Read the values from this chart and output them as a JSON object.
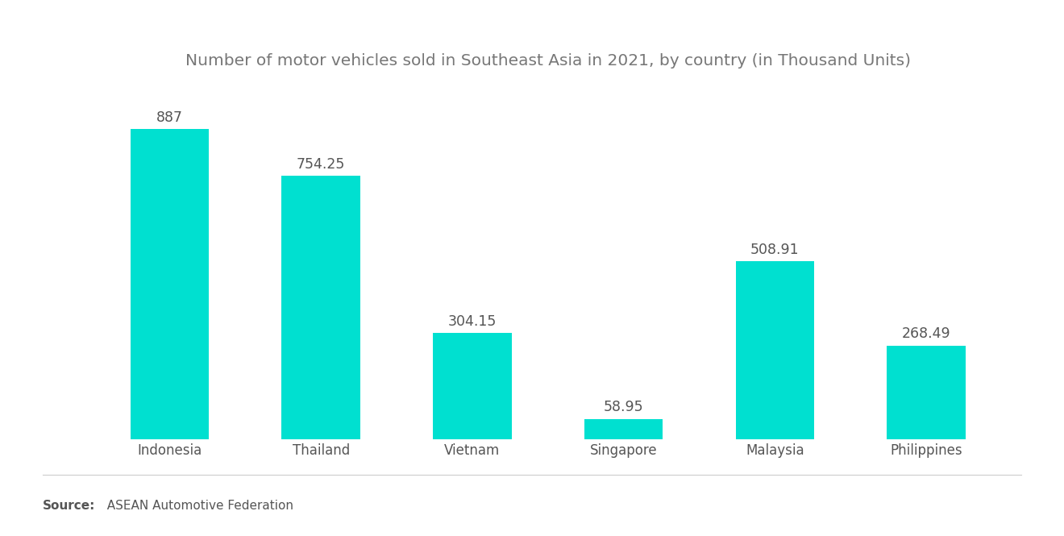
{
  "title": "Number of motor vehicles sold in Southeast Asia in 2021, by country (in Thousand Units)",
  "categories": [
    "Indonesia",
    "Thailand",
    "Vietnam",
    "Singapore",
    "Malaysia",
    "Philippines"
  ],
  "values": [
    887,
    754.25,
    304.15,
    58.95,
    508.91,
    268.49
  ],
  "bar_color": "#00E0D0",
  "label_color": "#555555",
  "title_color": "#777777",
  "background_color": "#ffffff",
  "title_fontsize": 14.5,
  "label_fontsize": 12.5,
  "tick_fontsize": 12,
  "source_fontsize": 11,
  "ylim": [
    0,
    980
  ],
  "bar_width": 0.52,
  "source_bold": "Source:",
  "source_normal": "  ASEAN Automotive Federation"
}
